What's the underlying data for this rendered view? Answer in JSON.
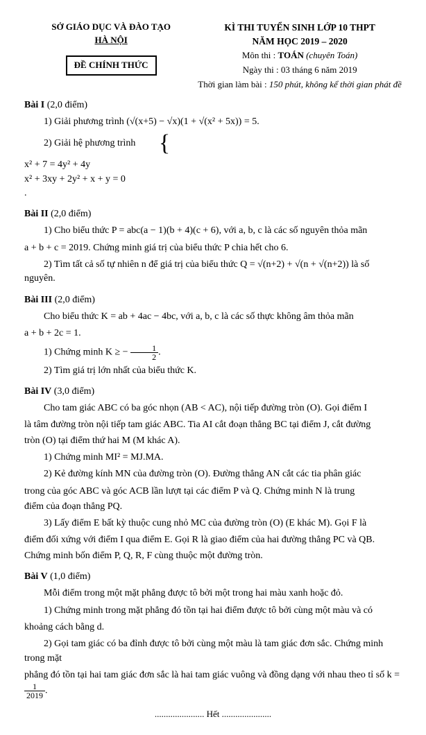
{
  "header": {
    "dept": "SỞ GIÁO DỤC VÀ ĐÀO TẠO",
    "city": "HÀ NỘI",
    "official": "ĐỀ CHÍNH THỨC",
    "exam_line1": "KÌ THI TUYỂN SINH LỚP 10 THPT",
    "exam_line2": "NĂM HỌC 2019 – 2020",
    "subject_label": "Môn thi :",
    "subject": "TOÁN",
    "subject_note": "(chuyên Toán)",
    "date": "Ngày thi : 03 tháng 6 năm 2019",
    "duration_label": "Thời gian làm bài :",
    "duration": "150 phút, không kể thời gian phát đề"
  },
  "bai1": {
    "head": "Bài I",
    "points": " (2,0 điểm)",
    "q1_lead": "1) Giải phương trình ",
    "q1_eq": "(√(x+5) − √x)(1 + √(x² + 5x)) = 5.",
    "q2_lead": "2) Giải hệ phương trình ",
    "q2_sys1": "x² + 7 = 4y² + 4y",
    "q2_sys2": "x² + 3xy + 2y² + x + y = 0"
  },
  "bai2": {
    "head": "Bài II",
    "points": " (2,0 điểm)",
    "q1a": "1) Cho biểu thức  P = abc(a − 1)(b + 4)(c + 6), với  a, b, c  là các số nguyên thỏa mãn",
    "q1b": "a + b + c = 2019. Chứng minh giá trị của biểu thức  P  chia hết cho  6.",
    "q2": "2) Tìm tất cả số tự nhiên  n  để giá trị của biểu thức  Q = √(n+2) + √(n + √(n+2))  là số nguyên."
  },
  "bai3": {
    "head": "Bài III",
    "points": " (2,0 điểm)",
    "intro1": "Cho biểu thức  K = ab + 4ac − 4bc,  với  a, b, c  là các số thực không âm thỏa mãn",
    "intro2": "a + b + 2c = 1.",
    "q1_lead": "1) Chứng minh  K ≥ − ",
    "q1_tail": ".",
    "q2": "2) Tìm giá trị lớn nhất của biểu thức  K."
  },
  "bai4": {
    "head": "Bài IV",
    "points": " (3,0 điểm)",
    "p1": "Cho tam giác  ABC  có ba góc nhọn  (AB < AC), nội tiếp đường tròn  (O).  Gọi điểm  I",
    "p2": "là tâm đường tròn nội tiếp tam giác  ABC.  Tia  AI  cắt đoạn thẳng  BC  tại điểm  J,  cắt đường",
    "p3": "tròn  (O)  tại điểm thứ hai  M  (M  khác  A).",
    "q1": "1) Chứng minh  MI² = MJ.MA.",
    "q2a": "2) Kẻ đường kính  MN  của đường tròn  (O).  Đường thẳng  AN  cắt các tia phân giác",
    "q2b": "trong của góc  ABC  và góc  ACB  lần lượt tại các điểm  P  và  Q.  Chứng minh  N  là trung",
    "q2c": "điểm của đoạn thẳng  PQ.",
    "q3a": "3) Lấy điểm  E  bất kỳ thuộc cung nhỏ  MC  của đường tròn  (O)  (E  khác  M).  Gọi  F  là",
    "q3b": "điểm đối xứng với điểm  I  qua điểm  E.  Gọi  R  là giao điểm của hai đường thẳng  PC  và  QB.",
    "q3c": "Chứng minh bốn điểm  P, Q, R, F  cùng thuộc một đường tròn."
  },
  "bai5": {
    "head": "Bài V",
    "points": " (1,0 điểm)",
    "intro": "Mỗi điểm trong một mặt phẳng được tô bởi một trong hai màu xanh hoặc đỏ.",
    "q1a": "1) Chứng minh trong mặt phẳng đó tồn tại hai điểm được tô bởi cùng một màu và có",
    "q1b": "khoảng cách bằng  d.",
    "q2a": "2) Gọi tam giác có ba đỉnh được tô bởi cùng một màu là tam giác đơn sắc. Chứng minh trong mặt",
    "q2b_lead": "phẳng đó tồn tại hai tam giác đơn sắc là hai tam giác vuông và đồng dạng với nhau theo tỉ số  k = ",
    "q2b_tail": "."
  },
  "footer": {
    "end": "Hết"
  },
  "frac": {
    "half_num": "1",
    "half_den": "2",
    "k_num": "1",
    "k_den": "2019"
  }
}
